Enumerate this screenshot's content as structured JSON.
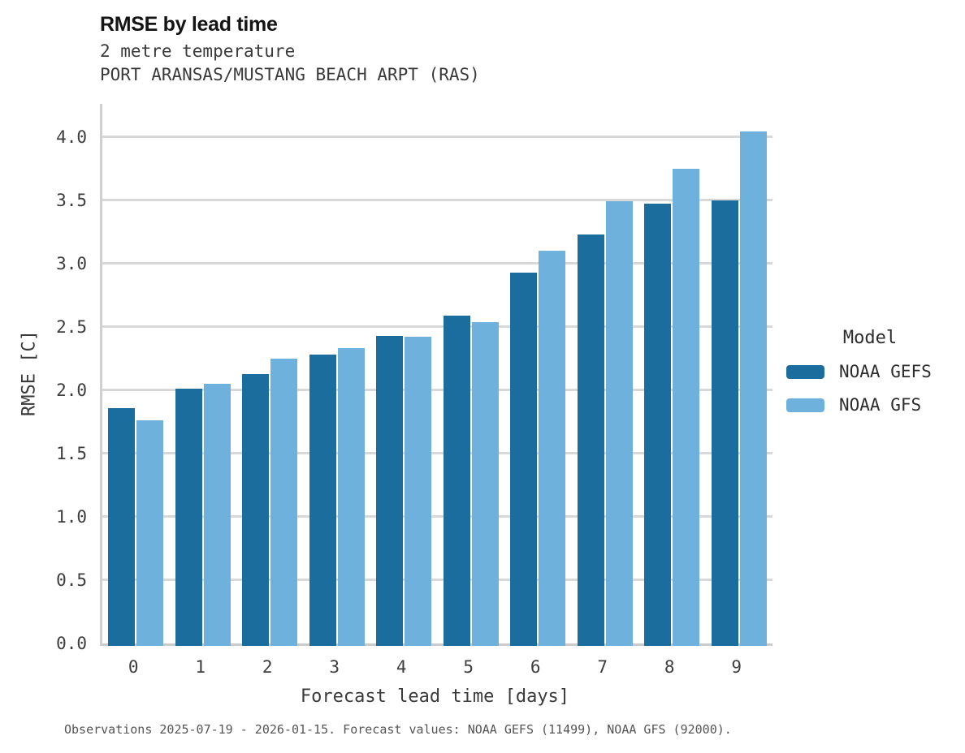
{
  "header": {
    "title": "RMSE by lead time",
    "subtitle1": "2 metre temperature",
    "subtitle2": "PORT ARANSAS/MUSTANG BEACH ARPT (RAS)"
  },
  "axes": {
    "y_label": "RMSE [C]",
    "x_label": "Forecast lead time [days]"
  },
  "legend": {
    "title": "Model"
  },
  "footer": {
    "note": "Observations 2025-07-19 - 2026-01-15. Forecast values: NOAA GEFS (11499), NOAA GFS (92000)."
  },
  "colors": {
    "gefs": "#1b6d9e",
    "gfs": "#6eb1dc",
    "gridline": "#d8d8d8"
  },
  "chart_data": {
    "type": "bar",
    "title": "RMSE by lead time",
    "subtitle": [
      "2 metre temperature",
      "PORT ARANSAS/MUSTANG BEACH ARPT (RAS)"
    ],
    "categories": [
      0,
      1,
      2,
      3,
      4,
      5,
      6,
      7,
      8,
      9
    ],
    "series": [
      {
        "name": "NOAA GEFS",
        "color": "#1b6d9e",
        "values": [
          1.86,
          2.01,
          2.13,
          2.28,
          2.43,
          2.59,
          2.93,
          3.23,
          3.47,
          3.5
        ]
      },
      {
        "name": "NOAA GFS",
        "color": "#6eb1dc",
        "values": [
          1.76,
          2.05,
          2.25,
          2.33,
          2.42,
          2.54,
          3.1,
          3.49,
          3.75,
          4.04
        ]
      }
    ],
    "xlabel": "Forecast lead time [days]",
    "ylabel": "RMSE [C]",
    "ylim": [
      0,
      4.26
    ],
    "yticks": [
      0,
      0.5,
      1,
      1.5,
      2,
      2.5,
      3,
      3.5,
      4
    ],
    "grid": true,
    "legend_title": "Model",
    "legend_position": "right",
    "footnote": "Observations 2025-07-19 - 2026-01-15. Forecast values: NOAA GEFS (11499), NOAA GFS (92000)."
  }
}
